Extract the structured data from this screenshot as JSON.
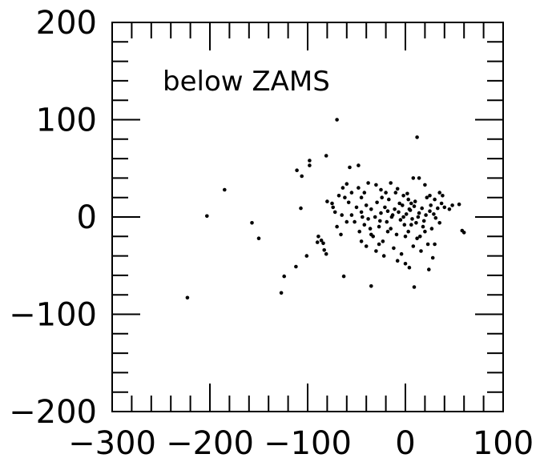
{
  "chart_data": {
    "type": "scatter",
    "title": "",
    "xlabel": "",
    "ylabel": "",
    "xlim": [
      -300,
      100
    ],
    "ylim": [
      -200,
      200
    ],
    "grid": false,
    "annotation": "below ZAMS",
    "x_ticks": [
      {
        "value": -300,
        "label": "−300"
      },
      {
        "value": -200,
        "label": "−200"
      },
      {
        "value": -100,
        "label": "−100"
      },
      {
        "value": 0,
        "label": "0"
      },
      {
        "value": 100,
        "label": "100"
      }
    ],
    "y_ticks": [
      {
        "value": 200,
        "label": "200"
      },
      {
        "value": 100,
        "label": "100"
      },
      {
        "value": 0,
        "label": "0"
      },
      {
        "value": -100,
        "label": "−100"
      },
      {
        "value": -200,
        "label": "−200"
      }
    ],
    "points": [
      [
        -70,
        100
      ],
      [
        12,
        82
      ],
      [
        -81,
        63
      ],
      [
        -98,
        58
      ],
      [
        -98,
        53
      ],
      [
        -48,
        53
      ],
      [
        -57,
        51
      ],
      [
        -111,
        48
      ],
      [
        -106,
        42
      ],
      [
        -185,
        28
      ],
      [
        -203,
        1
      ],
      [
        -157,
        -6
      ],
      [
        -150,
        -22
      ],
      [
        -223,
        -83
      ],
      [
        -127,
        -78
      ],
      [
        -124,
        -61
      ],
      [
        -112,
        -51
      ],
      [
        -101,
        -40
      ],
      [
        -89,
        -20
      ],
      [
        -84,
        -27
      ],
      [
        -83,
        -34
      ],
      [
        -81,
        -38
      ],
      [
        -86,
        -24
      ],
      [
        -90,
        -26
      ],
      [
        -63,
        -61
      ],
      [
        -35,
        -71
      ],
      [
        9,
        -72
      ],
      [
        -107,
        9
      ],
      [
        -80,
        16
      ],
      [
        -74,
        10
      ],
      [
        -62,
        20
      ],
      [
        -68,
        22
      ],
      [
        -64,
        30
      ],
      [
        -60,
        34
      ],
      [
        -55,
        25
      ],
      [
        -48,
        30
      ],
      [
        -45,
        20
      ],
      [
        -42,
        25
      ],
      [
        -38,
        35
      ],
      [
        -30,
        33
      ],
      [
        -25,
        28
      ],
      [
        -20,
        25
      ],
      [
        -15,
        35
      ],
      [
        -8,
        29
      ],
      [
        -2,
        22
      ],
      [
        3,
        18
      ],
      [
        8,
        40
      ],
      [
        14,
        40
      ],
      [
        20,
        33
      ],
      [
        25,
        22
      ],
      [
        30,
        18
      ],
      [
        35,
        25
      ],
      [
        38,
        22
      ],
      [
        40,
        10
      ],
      [
        45,
        8
      ],
      [
        48,
        12
      ],
      [
        55,
        13
      ],
      [
        58,
        -14
      ],
      [
        60,
        -16
      ],
      [
        -55,
        2
      ],
      [
        -52,
        -5
      ],
      [
        -50,
        10
      ],
      [
        -47,
        -15
      ],
      [
        -45,
        5
      ],
      [
        -42,
        -8
      ],
      [
        -40,
        12
      ],
      [
        -38,
        -2
      ],
      [
        -35,
        8
      ],
      [
        -33,
        -20
      ],
      [
        -31,
        0
      ],
      [
        -29,
        15
      ],
      [
        -27,
        -10
      ],
      [
        -25,
        4
      ],
      [
        -23,
        -25
      ],
      [
        -21,
        10
      ],
      [
        -19,
        -5
      ],
      [
        -17,
        18
      ],
      [
        -15,
        -12
      ],
      [
        -13,
        2
      ],
      [
        -11,
        8
      ],
      [
        -9,
        -18
      ],
      [
        -7,
        5
      ],
      [
        -5,
        -3
      ],
      [
        -3,
        12
      ],
      [
        -1,
        -8
      ],
      [
        1,
        3
      ],
      [
        3,
        -15
      ],
      [
        5,
        7
      ],
      [
        7,
        -2
      ],
      [
        9,
        11
      ],
      [
        11,
        -6
      ],
      [
        13,
        0
      ],
      [
        15,
        -20
      ],
      [
        17,
        9
      ],
      [
        19,
        -4
      ],
      [
        21,
        2
      ],
      [
        23,
        -28
      ],
      [
        25,
        6
      ],
      [
        27,
        -12
      ],
      [
        29,
        3
      ],
      [
        31,
        -1
      ],
      [
        33,
        9
      ],
      [
        35,
        -6
      ],
      [
        37,
        14
      ],
      [
        -45,
        -25
      ],
      [
        -40,
        -30
      ],
      [
        -35,
        -18
      ],
      [
        -30,
        -35
      ],
      [
        -27,
        -28
      ],
      [
        -22,
        -40
      ],
      [
        -18,
        -15
      ],
      [
        -12,
        -32
      ],
      [
        -8,
        -45
      ],
      [
        -4,
        -38
      ],
      [
        0,
        -48
      ],
      [
        4,
        -52
      ],
      [
        8,
        -30
      ],
      [
        12,
        -22
      ],
      [
        16,
        -35
      ],
      [
        20,
        -15
      ],
      [
        24,
        -54
      ],
      [
        28,
        -42
      ],
      [
        30,
        -28
      ],
      [
        -60,
        -5
      ],
      [
        -58,
        15
      ],
      [
        -65,
        2
      ],
      [
        -70,
        -10
      ],
      [
        -72,
        5
      ],
      [
        -66,
        -18
      ],
      [
        -75,
        14
      ],
      [
        -14,
        0
      ],
      [
        -6,
        14
      ],
      [
        2,
        24
      ],
      [
        10,
        16
      ],
      [
        18,
        -10
      ],
      [
        26,
        12
      ],
      [
        -24,
        20
      ],
      [
        -36,
        -12
      ],
      [
        -44,
        0
      ],
      [
        6,
        -8
      ],
      [
        14,
        4
      ],
      [
        22,
        20
      ],
      [
        -10,
        25
      ],
      [
        -2,
        0
      ],
      [
        0,
        -20
      ],
      [
        4,
        8
      ],
      [
        6,
        14
      ],
      [
        -18,
        6
      ],
      [
        -26,
        -4
      ]
    ]
  }
}
